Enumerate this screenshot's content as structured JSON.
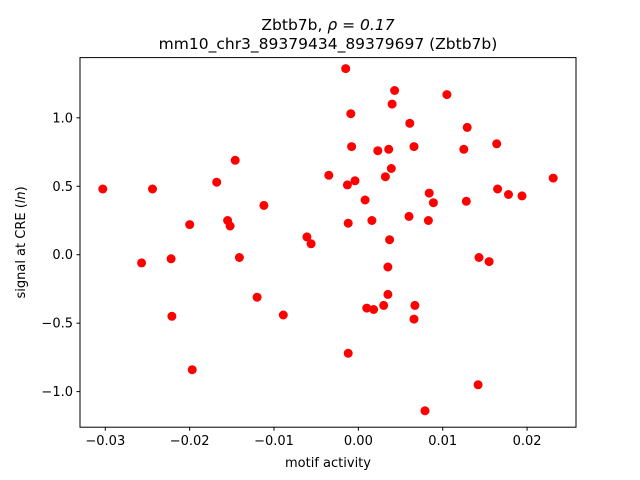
{
  "chart_data": {
    "type": "scatter",
    "title_line1_prefix": "Zbtb7b, ",
    "title_line1_rho": "ρ = 0.17",
    "title_line2": "mm10_chr3_89379434_89379697 (Zbtb7b)",
    "xlabel": "motif activity",
    "ylabel_prefix": "signal at CRE (",
    "ylabel_italic": "ln",
    "ylabel_suffix": ")",
    "xlim": [
      -0.033,
      0.0258
    ],
    "ylim": [
      -1.26,
      1.44
    ],
    "x_ticks": [
      {
        "value": -0.03,
        "label": "−0.03"
      },
      {
        "value": -0.02,
        "label": "−0.02"
      },
      {
        "value": -0.01,
        "label": "−0.01"
      },
      {
        "value": 0.0,
        "label": "0.00"
      },
      {
        "value": 0.01,
        "label": "0.01"
      },
      {
        "value": 0.02,
        "label": "0.02"
      }
    ],
    "y_ticks": [
      {
        "value": -1.0,
        "label": "−1.0"
      },
      {
        "value": -0.5,
        "label": "−0.5"
      },
      {
        "value": 0.0,
        "label": "0.0"
      },
      {
        "value": 0.5,
        "label": "0.5"
      },
      {
        "value": 1.0,
        "label": "1.0"
      }
    ],
    "grid": false,
    "marker_color": "#ff0000",
    "points": [
      {
        "x": -0.0303,
        "y": 0.48
      },
      {
        "x": -0.0257,
        "y": -0.06
      },
      {
        "x": -0.0244,
        "y": 0.48
      },
      {
        "x": -0.0222,
        "y": -0.03
      },
      {
        "x": -0.0221,
        "y": -0.45
      },
      {
        "x": -0.02,
        "y": 0.22
      },
      {
        "x": -0.0197,
        "y": -0.84
      },
      {
        "x": -0.0168,
        "y": 0.53
      },
      {
        "x": -0.0155,
        "y": 0.25
      },
      {
        "x": -0.0152,
        "y": 0.21
      },
      {
        "x": -0.0146,
        "y": 0.69
      },
      {
        "x": -0.0141,
        "y": -0.02
      },
      {
        "x": -0.012,
        "y": -0.31
      },
      {
        "x": -0.0112,
        "y": 0.36
      },
      {
        "x": -0.0089,
        "y": -0.44
      },
      {
        "x": -0.0061,
        "y": 0.13
      },
      {
        "x": -0.0056,
        "y": 0.08
      },
      {
        "x": -0.0035,
        "y": 0.58
      },
      {
        "x": -0.0015,
        "y": 1.36
      },
      {
        "x": -0.0013,
        "y": 0.51
      },
      {
        "x": -0.0012,
        "y": 0.23
      },
      {
        "x": -0.0012,
        "y": -0.72
      },
      {
        "x": -0.0009,
        "y": 1.03
      },
      {
        "x": -0.0008,
        "y": 0.79
      },
      {
        "x": -0.0004,
        "y": 0.54
      },
      {
        "x": 0.0008,
        "y": 0.4
      },
      {
        "x": 0.001,
        "y": -0.39
      },
      {
        "x": 0.0016,
        "y": 0.25
      },
      {
        "x": 0.0018,
        "y": -0.4
      },
      {
        "x": 0.0023,
        "y": 0.76
      },
      {
        "x": 0.003,
        "y": -0.37
      },
      {
        "x": 0.0032,
        "y": 0.57
      },
      {
        "x": 0.0035,
        "y": -0.29
      },
      {
        "x": 0.0035,
        "y": -0.09
      },
      {
        "x": 0.0036,
        "y": 0.77
      },
      {
        "x": 0.0037,
        "y": 0.11
      },
      {
        "x": 0.0039,
        "y": 0.63
      },
      {
        "x": 0.004,
        "y": 1.1
      },
      {
        "x": 0.0043,
        "y": 1.2
      },
      {
        "x": 0.006,
        "y": 0.28
      },
      {
        "x": 0.0061,
        "y": 0.96
      },
      {
        "x": 0.0066,
        "y": 0.79
      },
      {
        "x": 0.0066,
        "y": -0.47
      },
      {
        "x": 0.0067,
        "y": -0.37
      },
      {
        "x": 0.0079,
        "y": -1.14
      },
      {
        "x": 0.0083,
        "y": 0.25
      },
      {
        "x": 0.0084,
        "y": 0.45
      },
      {
        "x": 0.0089,
        "y": 0.38
      },
      {
        "x": 0.0105,
        "y": 1.17
      },
      {
        "x": 0.0125,
        "y": 0.77
      },
      {
        "x": 0.0128,
        "y": 0.39
      },
      {
        "x": 0.0129,
        "y": 0.93
      },
      {
        "x": 0.0142,
        "y": -0.95
      },
      {
        "x": 0.0143,
        "y": -0.02
      },
      {
        "x": 0.0155,
        "y": -0.05
      },
      {
        "x": 0.0164,
        "y": 0.81
      },
      {
        "x": 0.0165,
        "y": 0.48
      },
      {
        "x": 0.0178,
        "y": 0.44
      },
      {
        "x": 0.0194,
        "y": 0.43
      },
      {
        "x": 0.0231,
        "y": 0.56
      }
    ]
  }
}
